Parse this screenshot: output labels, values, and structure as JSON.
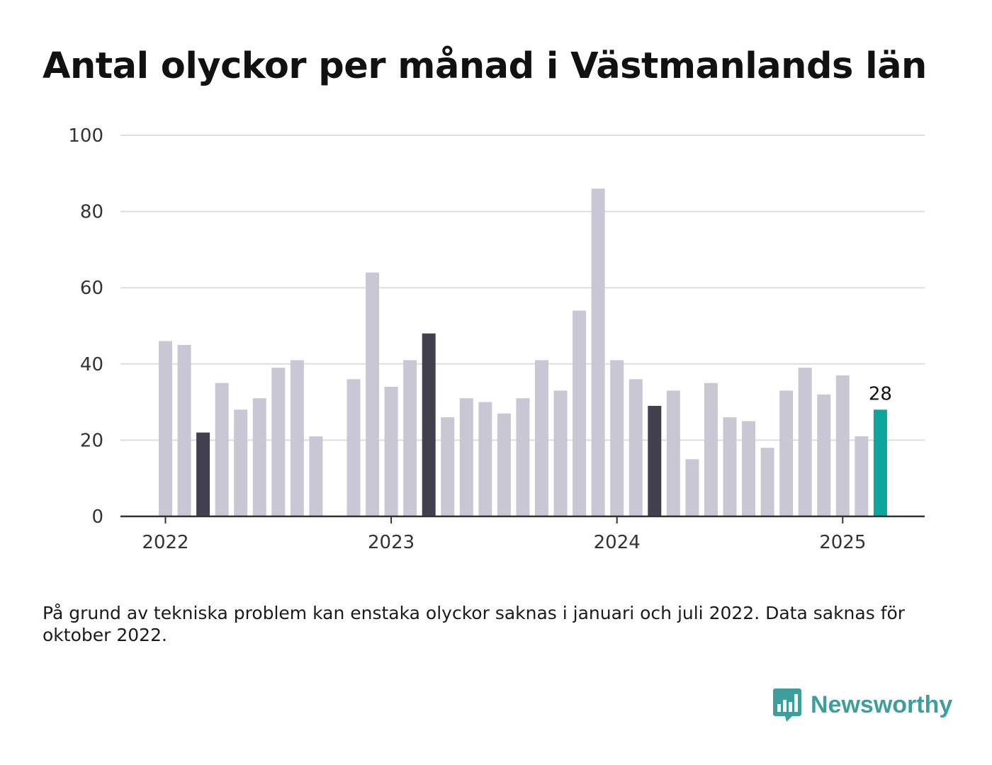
{
  "title": "Antal olyckor per månad i Västmanlands län",
  "note": "På grund av tekniska problem kan enstaka olyckor saknas i januari och juli 2022. Data saknas för oktober 2022.",
  "brand": {
    "name": "Newsworthy",
    "icon": "bar-chart-speech-bubble-icon",
    "color": "#3d9e9b"
  },
  "colors": {
    "default": "#c9c7d3",
    "march": "#42404e",
    "latest": "#0fa59c",
    "grid": "#dddddd",
    "axis": "#333333"
  },
  "chart_data": {
    "type": "bar",
    "ylim": [
      0,
      100
    ],
    "yticks": [
      0,
      20,
      40,
      60,
      80,
      100
    ],
    "xticks": [
      "2022",
      "2023",
      "2024",
      "2025"
    ],
    "categories": [
      "2022-01",
      "2022-02",
      "2022-03",
      "2022-04",
      "2022-05",
      "2022-06",
      "2022-07",
      "2022-08",
      "2022-09",
      "2022-10",
      "2022-11",
      "2022-12",
      "2023-01",
      "2023-02",
      "2023-03",
      "2023-04",
      "2023-05",
      "2023-06",
      "2023-07",
      "2023-08",
      "2023-09",
      "2023-10",
      "2023-11",
      "2023-12",
      "2024-01",
      "2024-02",
      "2024-03",
      "2024-04",
      "2024-05",
      "2024-06",
      "2024-07",
      "2024-08",
      "2024-09",
      "2024-10",
      "2024-11",
      "2024-12",
      "2025-01",
      "2025-02",
      "2025-03"
    ],
    "values": [
      46,
      45,
      22,
      35,
      28,
      31,
      39,
      41,
      21,
      null,
      36,
      64,
      34,
      41,
      48,
      26,
      31,
      30,
      27,
      31,
      41,
      33,
      54,
      86,
      41,
      36,
      29,
      33,
      15,
      35,
      26,
      25,
      18,
      33,
      39,
      32,
      37,
      21,
      28
    ],
    "highlight_march": [
      "2022-03",
      "2023-03",
      "2024-03"
    ],
    "latest": "2025-03",
    "latest_label": "28",
    "grid": true
  }
}
